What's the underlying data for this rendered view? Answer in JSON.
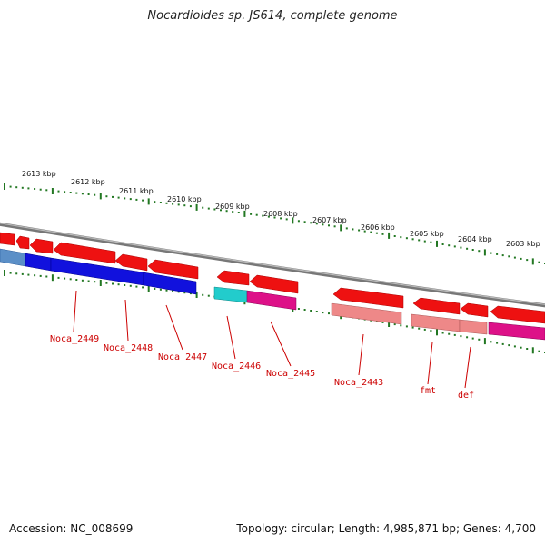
{
  "title": "Nocardioides sp. JS614, complete genome",
  "footer": {
    "accession": "Accession: NC_008699",
    "summary": "Topology: circular; Length: 4,985,871 bp; Genes: 4,700"
  },
  "ruler": {
    "labels": [
      "2613 kbp",
      "2612 kbp",
      "2611 kbp",
      "2610 kbp",
      "2609 kbp",
      "2608 kbp",
      "2607 kbp",
      "2606 kbp",
      "2605 kbp",
      "2604 kbp",
      "2603 kbp"
    ]
  },
  "genes": [
    {
      "name": "Noca_2449"
    },
    {
      "name": "Noca_2448"
    },
    {
      "name": "Noca_2447"
    },
    {
      "name": "Noca_2446"
    },
    {
      "name": "Noca_2445"
    },
    {
      "name": "Noca_2443"
    },
    {
      "name": "fmt"
    },
    {
      "name": "def"
    }
  ],
  "colors": {
    "cds_red": "#ee1111",
    "blue": "#1111dd",
    "steel_blue": "#5b8fc7",
    "cyan": "#22cccc",
    "magenta": "#dd1188",
    "pink": "#ee8888",
    "grey_track": "#888888",
    "tick_green": "#227722",
    "label_red": "#cc0000"
  }
}
